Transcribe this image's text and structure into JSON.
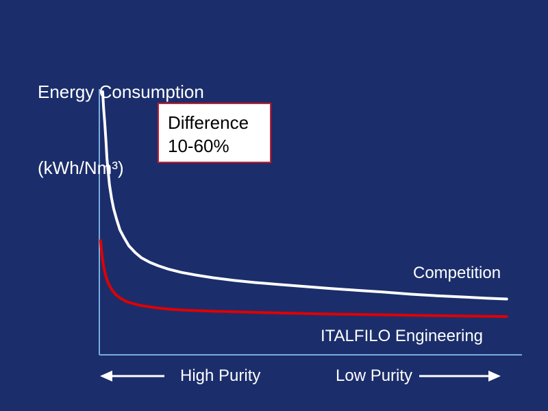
{
  "title": {
    "line1": "Energy Consumption",
    "line2": "(kWh/Nm³)"
  },
  "annotation": {
    "line1": "Difference",
    "line2": "10-60%"
  },
  "x_axis": {
    "left_label": "High Purity",
    "right_label": "Low Purity"
  },
  "colors": {
    "background": "#1b2e6b",
    "axis": "#7aaede",
    "competition_line": "#ffffff",
    "italfilo_line": "#e00000",
    "annotation_border": "#c81e2e",
    "annotation_fill": "#ffffff",
    "text": "#ffffff"
  },
  "chart_data": {
    "type": "line",
    "title": "Energy Consumption (kWh/Nm³)",
    "xlabel": "",
    "ylabel": "Energy Consumption (kWh/Nm³)",
    "x_axis_annotations": [
      "High Purity (left, arrow pointing left)",
      "Low Purity (right, arrow pointing right)"
    ],
    "annotation": "Difference 10-60%",
    "grid": false,
    "axes_visible": true,
    "tick_labels": "none (qualitative axes, relative units 0-1)",
    "legend_position": "inline labels at right of curves",
    "series": [
      {
        "name": "Competition",
        "color": "#ffffff",
        "shape": "hyperbolic decay",
        "points": [
          [
            0.008,
            0.99
          ],
          [
            0.01,
            0.93
          ],
          [
            0.013,
            0.87
          ],
          [
            0.016,
            0.8
          ],
          [
            0.018,
            0.74
          ],
          [
            0.021,
            0.69
          ],
          [
            0.024,
            0.64
          ],
          [
            0.029,
            0.59
          ],
          [
            0.034,
            0.55
          ],
          [
            0.041,
            0.51
          ],
          [
            0.049,
            0.47
          ],
          [
            0.059,
            0.44
          ],
          [
            0.07,
            0.41
          ],
          [
            0.085,
            0.385
          ],
          [
            0.1,
            0.365
          ],
          [
            0.12,
            0.348
          ],
          [
            0.14,
            0.335
          ],
          [
            0.165,
            0.322
          ],
          [
            0.195,
            0.31
          ],
          [
            0.23,
            0.3
          ],
          [
            0.27,
            0.29
          ],
          [
            0.32,
            0.28
          ],
          [
            0.37,
            0.272
          ],
          [
            0.425,
            0.265
          ],
          [
            0.48,
            0.258
          ],
          [
            0.545,
            0.25
          ],
          [
            0.61,
            0.243
          ],
          [
            0.675,
            0.236
          ],
          [
            0.74,
            0.228
          ],
          [
            0.805,
            0.222
          ],
          [
            0.87,
            0.217
          ],
          [
            0.92,
            0.213
          ],
          [
            0.967,
            0.21
          ]
        ]
      },
      {
        "name": "ITALFILO Engineering",
        "color": "#e00000",
        "shape": "hyperbolic decay",
        "points": [
          [
            0.003,
            0.43
          ],
          [
            0.005,
            0.395
          ],
          [
            0.008,
            0.355
          ],
          [
            0.011,
            0.325
          ],
          [
            0.015,
            0.3
          ],
          [
            0.019,
            0.278
          ],
          [
            0.024,
            0.26
          ],
          [
            0.031,
            0.242
          ],
          [
            0.04,
            0.225
          ],
          [
            0.051,
            0.212
          ],
          [
            0.065,
            0.2
          ],
          [
            0.082,
            0.192
          ],
          [
            0.1,
            0.185
          ],
          [
            0.122,
            0.18
          ],
          [
            0.145,
            0.175
          ],
          [
            0.18,
            0.17
          ],
          [
            0.22,
            0.167
          ],
          [
            0.27,
            0.164
          ],
          [
            0.32,
            0.162
          ],
          [
            0.385,
            0.159
          ],
          [
            0.45,
            0.157
          ],
          [
            0.53,
            0.154
          ],
          [
            0.61,
            0.152
          ],
          [
            0.695,
            0.15
          ],
          [
            0.78,
            0.148
          ],
          [
            0.87,
            0.146
          ],
          [
            0.967,
            0.144
          ]
        ]
      }
    ]
  }
}
